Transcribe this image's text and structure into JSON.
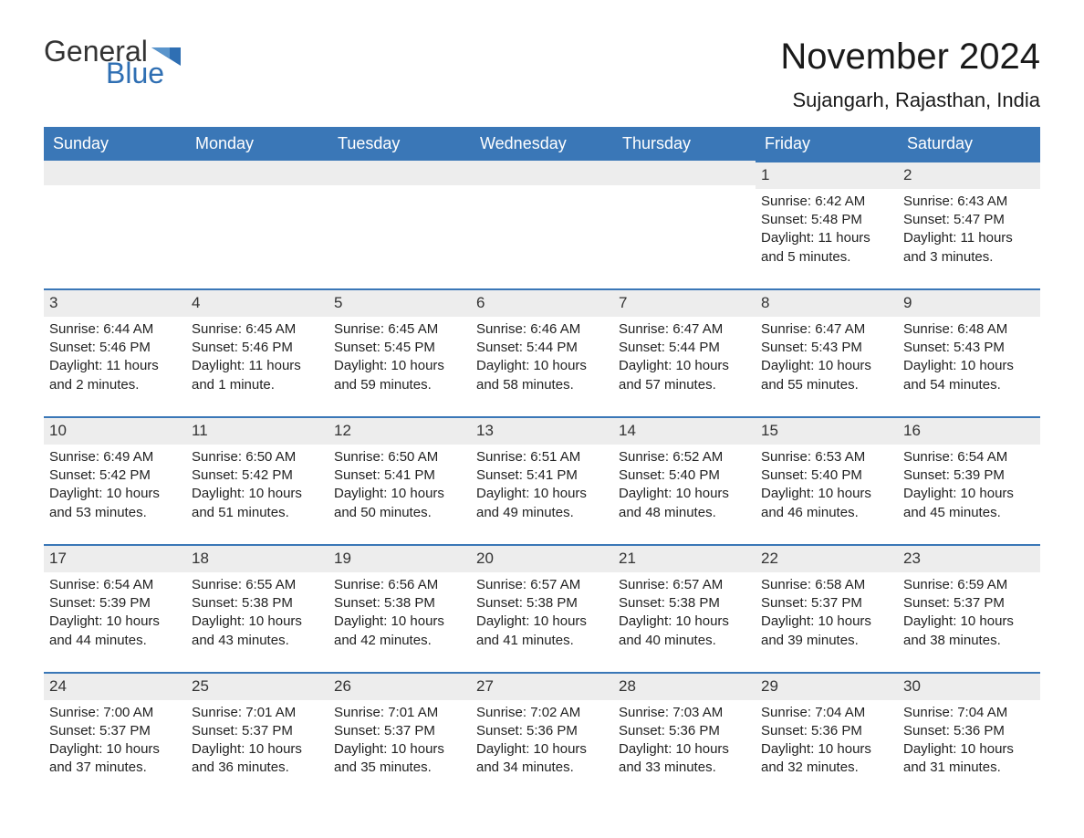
{
  "brand": {
    "word1": "General",
    "word2": "Blue",
    "accent": "#2f6fb3",
    "text": "#333333"
  },
  "title": "November 2024",
  "location": "Sujangarh, Rajasthan, India",
  "colors": {
    "header_bg": "#3a77b7",
    "header_text": "#ffffff",
    "daybar_bg": "#ededed",
    "daybar_border": "#3a77b7",
    "body_text": "#222222",
    "page_bg": "#ffffff"
  },
  "typography": {
    "title_fontsize": 40,
    "location_fontsize": 22,
    "dayhead_fontsize": 18,
    "cell_fontsize": 15,
    "daynum_fontsize": 17
  },
  "day_headers": [
    "Sunday",
    "Monday",
    "Tuesday",
    "Wednesday",
    "Thursday",
    "Friday",
    "Saturday"
  ],
  "weeks": [
    [
      null,
      null,
      null,
      null,
      null,
      {
        "d": "1",
        "sr": "Sunrise: 6:42 AM",
        "ss": "Sunset: 5:48 PM",
        "dl": "Daylight: 11 hours and 5 minutes."
      },
      {
        "d": "2",
        "sr": "Sunrise: 6:43 AM",
        "ss": "Sunset: 5:47 PM",
        "dl": "Daylight: 11 hours and 3 minutes."
      }
    ],
    [
      {
        "d": "3",
        "sr": "Sunrise: 6:44 AM",
        "ss": "Sunset: 5:46 PM",
        "dl": "Daylight: 11 hours and 2 minutes."
      },
      {
        "d": "4",
        "sr": "Sunrise: 6:45 AM",
        "ss": "Sunset: 5:46 PM",
        "dl": "Daylight: 11 hours and 1 minute."
      },
      {
        "d": "5",
        "sr": "Sunrise: 6:45 AM",
        "ss": "Sunset: 5:45 PM",
        "dl": "Daylight: 10 hours and 59 minutes."
      },
      {
        "d": "6",
        "sr": "Sunrise: 6:46 AM",
        "ss": "Sunset: 5:44 PM",
        "dl": "Daylight: 10 hours and 58 minutes."
      },
      {
        "d": "7",
        "sr": "Sunrise: 6:47 AM",
        "ss": "Sunset: 5:44 PM",
        "dl": "Daylight: 10 hours and 57 minutes."
      },
      {
        "d": "8",
        "sr": "Sunrise: 6:47 AM",
        "ss": "Sunset: 5:43 PM",
        "dl": "Daylight: 10 hours and 55 minutes."
      },
      {
        "d": "9",
        "sr": "Sunrise: 6:48 AM",
        "ss": "Sunset: 5:43 PM",
        "dl": "Daylight: 10 hours and 54 minutes."
      }
    ],
    [
      {
        "d": "10",
        "sr": "Sunrise: 6:49 AM",
        "ss": "Sunset: 5:42 PM",
        "dl": "Daylight: 10 hours and 53 minutes."
      },
      {
        "d": "11",
        "sr": "Sunrise: 6:50 AM",
        "ss": "Sunset: 5:42 PM",
        "dl": "Daylight: 10 hours and 51 minutes."
      },
      {
        "d": "12",
        "sr": "Sunrise: 6:50 AM",
        "ss": "Sunset: 5:41 PM",
        "dl": "Daylight: 10 hours and 50 minutes."
      },
      {
        "d": "13",
        "sr": "Sunrise: 6:51 AM",
        "ss": "Sunset: 5:41 PM",
        "dl": "Daylight: 10 hours and 49 minutes."
      },
      {
        "d": "14",
        "sr": "Sunrise: 6:52 AM",
        "ss": "Sunset: 5:40 PM",
        "dl": "Daylight: 10 hours and 48 minutes."
      },
      {
        "d": "15",
        "sr": "Sunrise: 6:53 AM",
        "ss": "Sunset: 5:40 PM",
        "dl": "Daylight: 10 hours and 46 minutes."
      },
      {
        "d": "16",
        "sr": "Sunrise: 6:54 AM",
        "ss": "Sunset: 5:39 PM",
        "dl": "Daylight: 10 hours and 45 minutes."
      }
    ],
    [
      {
        "d": "17",
        "sr": "Sunrise: 6:54 AM",
        "ss": "Sunset: 5:39 PM",
        "dl": "Daylight: 10 hours and 44 minutes."
      },
      {
        "d": "18",
        "sr": "Sunrise: 6:55 AM",
        "ss": "Sunset: 5:38 PM",
        "dl": "Daylight: 10 hours and 43 minutes."
      },
      {
        "d": "19",
        "sr": "Sunrise: 6:56 AM",
        "ss": "Sunset: 5:38 PM",
        "dl": "Daylight: 10 hours and 42 minutes."
      },
      {
        "d": "20",
        "sr": "Sunrise: 6:57 AM",
        "ss": "Sunset: 5:38 PM",
        "dl": "Daylight: 10 hours and 41 minutes."
      },
      {
        "d": "21",
        "sr": "Sunrise: 6:57 AM",
        "ss": "Sunset: 5:38 PM",
        "dl": "Daylight: 10 hours and 40 minutes."
      },
      {
        "d": "22",
        "sr": "Sunrise: 6:58 AM",
        "ss": "Sunset: 5:37 PM",
        "dl": "Daylight: 10 hours and 39 minutes."
      },
      {
        "d": "23",
        "sr": "Sunrise: 6:59 AM",
        "ss": "Sunset: 5:37 PM",
        "dl": "Daylight: 10 hours and 38 minutes."
      }
    ],
    [
      {
        "d": "24",
        "sr": "Sunrise: 7:00 AM",
        "ss": "Sunset: 5:37 PM",
        "dl": "Daylight: 10 hours and 37 minutes."
      },
      {
        "d": "25",
        "sr": "Sunrise: 7:01 AM",
        "ss": "Sunset: 5:37 PM",
        "dl": "Daylight: 10 hours and 36 minutes."
      },
      {
        "d": "26",
        "sr": "Sunrise: 7:01 AM",
        "ss": "Sunset: 5:37 PM",
        "dl": "Daylight: 10 hours and 35 minutes."
      },
      {
        "d": "27",
        "sr": "Sunrise: 7:02 AM",
        "ss": "Sunset: 5:36 PM",
        "dl": "Daylight: 10 hours and 34 minutes."
      },
      {
        "d": "28",
        "sr": "Sunrise: 7:03 AM",
        "ss": "Sunset: 5:36 PM",
        "dl": "Daylight: 10 hours and 33 minutes."
      },
      {
        "d": "29",
        "sr": "Sunrise: 7:04 AM",
        "ss": "Sunset: 5:36 PM",
        "dl": "Daylight: 10 hours and 32 minutes."
      },
      {
        "d": "30",
        "sr": "Sunrise: 7:04 AM",
        "ss": "Sunset: 5:36 PM",
        "dl": "Daylight: 10 hours and 31 minutes."
      }
    ]
  ]
}
